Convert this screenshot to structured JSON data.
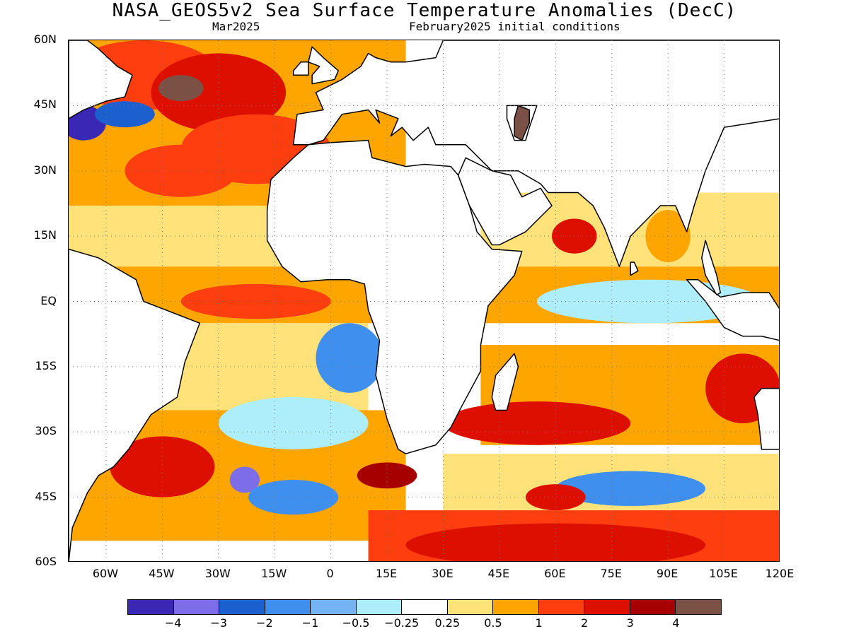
{
  "header": {
    "title": "NASA_GEOS5v2 Sea Surface Temperature Anomalies (DecC)",
    "subtitle_left": "Mar2025",
    "subtitle_right": "February2025 initial conditions"
  },
  "map": {
    "lat_labels": [
      "60N",
      "45N",
      "30N",
      "15N",
      "EQ",
      "15S",
      "30S",
      "45S",
      "60S"
    ],
    "lon_labels": [
      "60W",
      "45W",
      "30W",
      "15W",
      "0",
      "15E",
      "30E",
      "45E",
      "60E",
      "75E",
      "90E",
      "105E",
      "120E"
    ],
    "lon_range": [
      -70,
      120
    ],
    "lat_range": [
      -60,
      60
    ],
    "grid": "dotted"
  },
  "colorbar": {
    "colors": [
      "#3a27b4",
      "#7d6de8",
      "#1c5fcf",
      "#3f8fef",
      "#74b4f5",
      "#aeeefa",
      "#ffffff",
      "#ffe27a",
      "#ffa500",
      "#ff3e10",
      "#dd0f00",
      "#a60000",
      "#7a5144"
    ],
    "labels": [
      "−4",
      "−3",
      "−2",
      "−1",
      "−0.5",
      "−0.25",
      "0.25",
      "0.5",
      "1",
      "2",
      "3",
      "4"
    ]
  },
  "ocean": {
    "blobs": [
      {
        "lon": -50,
        "lat": 52,
        "rx": 20,
        "ry": 8,
        "level": "1"
      },
      {
        "lon": -30,
        "lat": 48,
        "rx": 18,
        "ry": 9,
        "level": "2"
      },
      {
        "lon": -40,
        "lat": 49,
        "rx": 6,
        "ry": 3,
        "level": "4"
      },
      {
        "lon": -66,
        "lat": 41,
        "rx": 6,
        "ry": 4,
        "level": "-4"
      },
      {
        "lon": -55,
        "lat": 43,
        "rx": 8,
        "ry": 3,
        "level": "-2"
      },
      {
        "lon": -20,
        "lat": 35,
        "rx": 20,
        "ry": 8,
        "level": "1"
      },
      {
        "lon": -40,
        "lat": 30,
        "rx": 15,
        "ry": 6,
        "level": "1"
      },
      {
        "lon": -30,
        "lat": 15,
        "rx": 25,
        "ry": 6,
        "level": "0.25"
      },
      {
        "lon": -20,
        "lat": 0,
        "rx": 20,
        "ry": 4,
        "level": "1"
      },
      {
        "lon": 5,
        "lat": -13,
        "rx": 9,
        "ry": 8,
        "level": "-1"
      },
      {
        "lon": -10,
        "lat": -28,
        "rx": 20,
        "ry": 6,
        "level": "-0.25"
      },
      {
        "lon": -45,
        "lat": -38,
        "rx": 14,
        "ry": 7,
        "level": "2"
      },
      {
        "lon": -23,
        "lat": -41,
        "rx": 4,
        "ry": 3,
        "level": "-3"
      },
      {
        "lon": -10,
        "lat": -45,
        "rx": 12,
        "ry": 4,
        "level": "-1"
      },
      {
        "lon": 15,
        "lat": -40,
        "rx": 8,
        "ry": 3,
        "level": "3"
      },
      {
        "lon": 55,
        "lat": -28,
        "rx": 25,
        "ry": 5,
        "level": "2"
      },
      {
        "lon": 80,
        "lat": -43,
        "rx": 20,
        "ry": 4,
        "level": "-1"
      },
      {
        "lon": 60,
        "lat": -45,
        "rx": 8,
        "ry": 3,
        "level": "2"
      },
      {
        "lon": 60,
        "lat": -56,
        "rx": 40,
        "ry": 5,
        "level": "2"
      },
      {
        "lon": 85,
        "lat": 0,
        "rx": 30,
        "ry": 5,
        "level": "-0.25"
      },
      {
        "lon": 65,
        "lat": 15,
        "rx": 6,
        "ry": 4,
        "level": "2"
      },
      {
        "lon": 90,
        "lat": 15,
        "rx": 6,
        "ry": 6,
        "level": "0.5"
      },
      {
        "lon": 110,
        "lat": -20,
        "rx": 10,
        "ry": 8,
        "level": "2"
      }
    ]
  }
}
